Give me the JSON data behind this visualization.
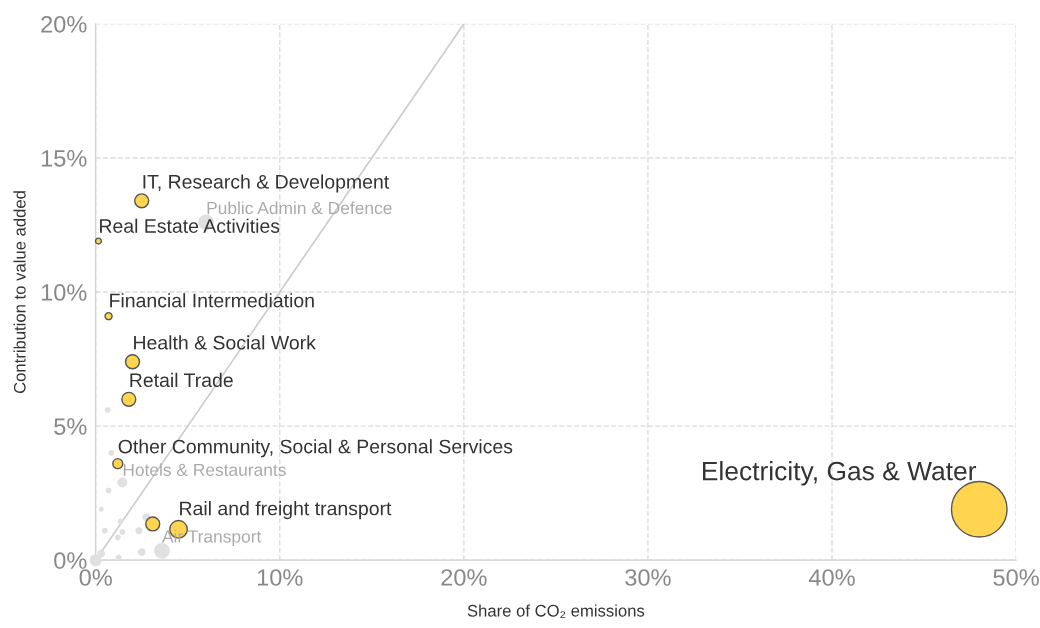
{
  "chart_data": {
    "type": "bubble",
    "xlabel": "Share of CO₂ emissions",
    "ylabel": "Contribution to value added",
    "xlim": [
      0,
      50
    ],
    "ylim": [
      0,
      20
    ],
    "xticks": [
      {
        "value": 0,
        "label": "0%"
      },
      {
        "value": 10,
        "label": "10%"
      },
      {
        "value": 20,
        "label": "20%"
      },
      {
        "value": 30,
        "label": "30%"
      },
      {
        "value": 40,
        "label": "40%"
      },
      {
        "value": 50,
        "label": "50%"
      }
    ],
    "yticks": [
      {
        "value": 0,
        "label": "0%"
      },
      {
        "value": 5,
        "label": "5%"
      },
      {
        "value": 10,
        "label": "10%"
      },
      {
        "value": 15,
        "label": "15%"
      },
      {
        "value": 20,
        "label": "20%"
      }
    ],
    "grid": true,
    "legend": false,
    "series": [
      {
        "type": "line",
        "color": "#cccccc",
        "x": [
          0,
          20
        ],
        "values": [
          0,
          20
        ]
      },
      {
        "color": "#e0e0e0",
        "x": [
          6.0,
          1.45,
          3.6,
          0.65,
          0.85,
          0.7,
          0.3,
          0.5,
          1.35,
          1.45,
          1.2,
          2.35,
          2.5,
          1.25,
          0,
          0.3,
          2.75
        ],
        "values": [
          12.6,
          2.9,
          0.35,
          5.6,
          4.0,
          2.6,
          1.9,
          1.1,
          1.45,
          1.05,
          0.85,
          1.1,
          0.3,
          0.1,
          0,
          0.25,
          1.6
        ],
        "sizes": [
          0.08,
          0.032,
          0.08,
          0.011,
          0.011,
          0.011,
          0.008,
          0.011,
          0.011,
          0.011,
          0.011,
          0.016,
          0.02,
          0.011,
          0.046,
          0.02,
          0.02
        ]
      },
      {
        "color": "#ffd54f",
        "x": [
          48.0,
          2.5,
          0.15,
          0.7,
          2.0,
          1.8,
          1.2,
          4.5,
          3.1
        ],
        "values": [
          1.9,
          13.4,
          11.9,
          9.1,
          7.4,
          6.0,
          3.6,
          1.15,
          1.35
        ],
        "sizes": [
          1,
          0.0625,
          0.011,
          0.016,
          0.0625,
          0.0625,
          0.032,
          0.1,
          0.0625
        ]
      }
    ],
    "annotations": [
      {
        "text": "Electricity, Gas & Water",
        "x": 48.0,
        "y": 1.9
      },
      {
        "text": "IT, Research & Development",
        "x": 2.5,
        "y": 13.4
      },
      {
        "text": "Public Admin & Defence",
        "x": 6.0,
        "y": 12.6
      },
      {
        "text": "Real Estate Activities",
        "x": 0.15,
        "y": 11.9
      },
      {
        "text": "Financial Intermediation",
        "x": 0.7,
        "y": 9.1
      },
      {
        "text": "Health & Social Work",
        "x": 2.0,
        "y": 7.4
      },
      {
        "text": "Retail Trade",
        "x": 1.8,
        "y": 6.0
      },
      {
        "text": "Other Community, Social & Personal Services",
        "x": 1.2,
        "y": 3.6
      },
      {
        "text": "Hotels & Restaurants",
        "x": 1.45,
        "y": 2.9
      },
      {
        "text": "Rail and freight transport",
        "x": 4.5,
        "y": 1.15
      },
      {
        "text": "Air Transport",
        "x": 3.6,
        "y": 0.35
      }
    ]
  }
}
